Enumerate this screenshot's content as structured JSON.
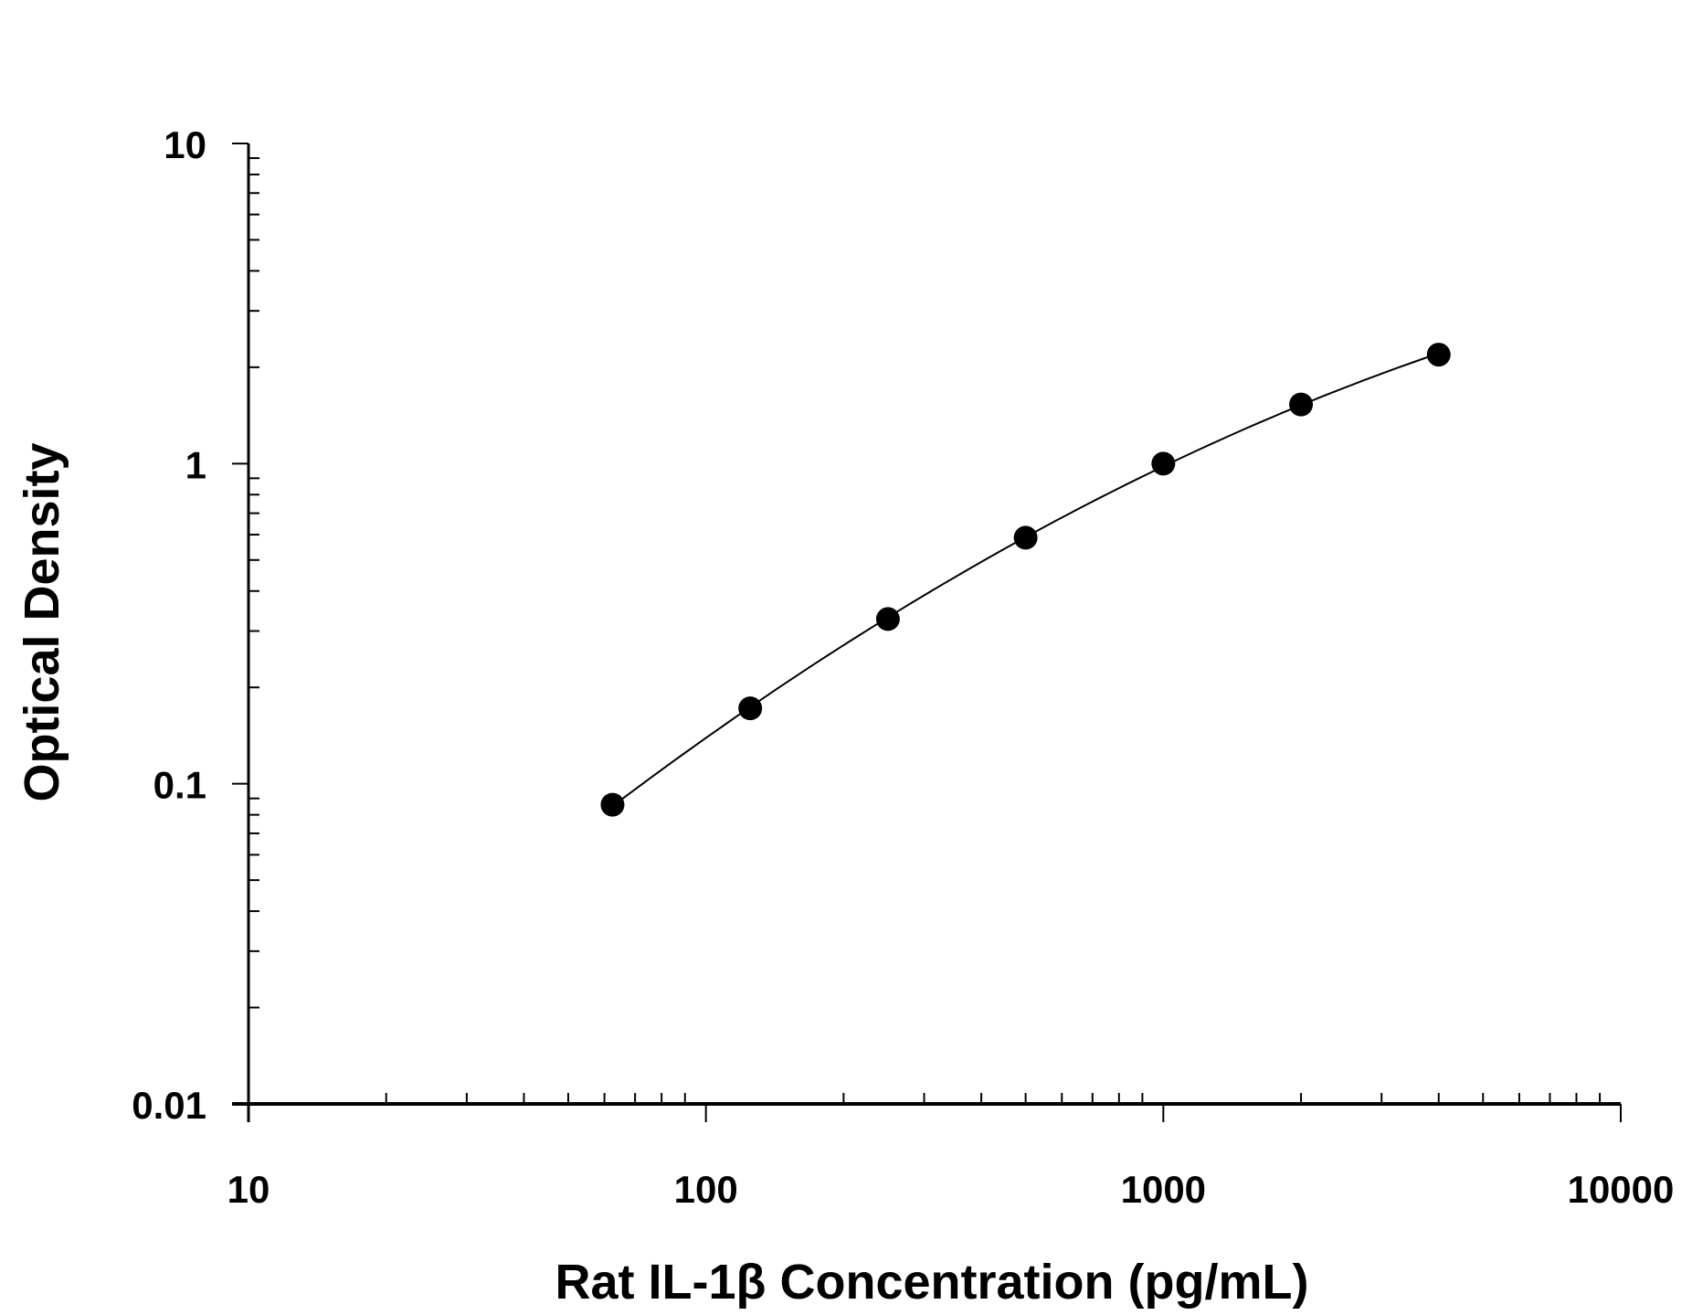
{
  "chart_data": {
    "type": "scatter",
    "title": "",
    "xlabel": "Rat IL-1β Concentration (pg/mL)",
    "ylabel": "Optical Density",
    "x_scale": "log",
    "y_scale": "log",
    "xlim": [
      10,
      10000
    ],
    "ylim": [
      0.01,
      10
    ],
    "x_tick_labels": [
      "10",
      "100",
      "1000",
      "10000"
    ],
    "y_tick_labels": [
      "0.01",
      "0.1",
      "1",
      "10"
    ],
    "grid": false,
    "legend": "none",
    "fit_curve": true,
    "colors": {
      "points": "#000000",
      "curve": "#000000",
      "axes": "#000000"
    },
    "series": [
      {
        "x": [
          62.5,
          125,
          250,
          500,
          1000,
          2000,
          4000
        ],
        "y": [
          0.086,
          0.172,
          0.327,
          0.587,
          1.0,
          1.53,
          2.19
        ]
      }
    ]
  }
}
